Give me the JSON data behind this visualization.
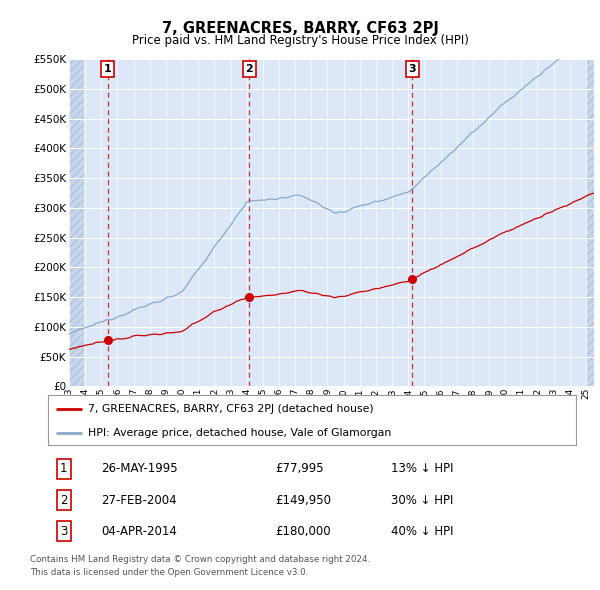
{
  "title": "7, GREENACRES, BARRY, CF63 2PJ",
  "subtitle": "Price paid vs. HM Land Registry's House Price Index (HPI)",
  "legend_red": "7, GREENACRES, BARRY, CF63 2PJ (detached house)",
  "legend_blue": "HPI: Average price, detached house, Vale of Glamorgan",
  "footer_line1": "Contains HM Land Registry data © Crown copyright and database right 2024.",
  "footer_line2": "This data is licensed under the Open Government Licence v3.0.",
  "transactions": [
    {
      "num": 1,
      "date": "26-MAY-1995",
      "price": 77995,
      "hpi_diff": "13% ↓ HPI"
    },
    {
      "num": 2,
      "date": "27-FEB-2004",
      "price": 149950,
      "hpi_diff": "30% ↓ HPI"
    },
    {
      "num": 3,
      "date": "04-APR-2014",
      "price": 180000,
      "hpi_diff": "40% ↓ HPI"
    }
  ],
  "transaction_dates_decimal": [
    1995.39,
    2004.16,
    2014.26
  ],
  "transaction_prices": [
    77995,
    149950,
    180000
  ],
  "plot_bg": "#dce8f8",
  "hatch_color": "#c8d8ec",
  "grid_color": "#ffffff",
  "red_line_color": "#cc0000",
  "blue_line_color": "#88aacc",
  "dashed_line_color": "#cc3333",
  "ylim": [
    0,
    550000
  ],
  "yticks": [
    0,
    50000,
    100000,
    150000,
    200000,
    250000,
    300000,
    350000,
    400000,
    450000,
    500000,
    550000
  ],
  "xstart": 1993.0,
  "xend": 2025.5,
  "xticks": [
    1993,
    1994,
    1995,
    1996,
    1997,
    1998,
    1999,
    2000,
    2001,
    2002,
    2003,
    2004,
    2005,
    2006,
    2007,
    2008,
    2009,
    2010,
    2011,
    2012,
    2013,
    2014,
    2015,
    2016,
    2017,
    2018,
    2019,
    2020,
    2021,
    2022,
    2023,
    2024,
    2025
  ]
}
